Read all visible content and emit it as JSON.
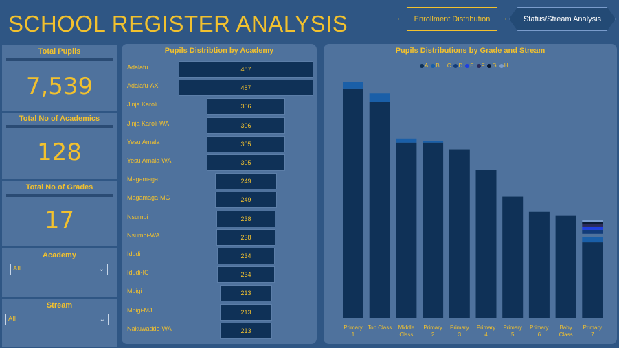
{
  "header": {
    "title": "SCHOOL REGISTER ANALYSIS",
    "nav": [
      {
        "label": "Enrollment Distribution"
      },
      {
        "label": "Status/Stream Analysis"
      }
    ]
  },
  "kpis": {
    "total_pupils": {
      "label": "Total Pupils",
      "value": "7,539"
    },
    "total_academics": {
      "label": "Total No of Academics",
      "value": "128"
    },
    "total_grades": {
      "label": "Total No of Grades",
      "value": "17"
    }
  },
  "slicers": {
    "academy": {
      "label": "Academy",
      "selected": "All"
    },
    "stream": {
      "label": "Stream",
      "selected": "All"
    }
  },
  "colors": {
    "accent": "#f2c12e",
    "background": "#2f5684",
    "panel": "#4f729d",
    "bar": "#0f3157"
  },
  "chart_data": [
    {
      "type": "bar",
      "orientation": "horizontal",
      "title": "Pupils Distribtion by  Academy",
      "categories": [
        "Adalafu",
        "Adalafu-AX",
        "Jinja Karoli",
        "Jinja Karoli-WA",
        "Yesu Amala",
        "Yesu Amala-WA",
        "Magamaga",
        "Magamaga-MG",
        "Nsumbi",
        "Nsumbi-WA",
        "Idudi",
        "Idudi-IC",
        "Mpigi",
        "Mpigi-MJ",
        "Nakuwadde-WA"
      ],
      "values": [
        487,
        487,
        306,
        306,
        305,
        305,
        249,
        249,
        238,
        238,
        234,
        234,
        213,
        213,
        213
      ]
    },
    {
      "type": "bar",
      "orientation": "vertical",
      "stacked": true,
      "title": "Pupils Distributions by Grade and Stream",
      "legend": [
        "A",
        "B",
        "C",
        "D",
        "E",
        "F",
        "G",
        "H"
      ],
      "legend_colors": [
        "#0f3157",
        "#1a5fa8",
        "#4f729d",
        "#123c7a",
        "#1f3fe0",
        "#2b2b5a",
        "#0a1a33",
        "#7a9ccc"
      ],
      "categories": [
        "Primary 1",
        "Top Class",
        "Middle Class",
        "Primary 2",
        "Primary 3",
        "Primary 4",
        "Primary 5",
        "Primary 6",
        "Baby Class",
        "Primary 7"
      ],
      "series": [
        {
          "name": "A",
          "values": [
            680,
            640,
            520,
            520,
            500,
            440,
            360,
            315,
            305,
            225
          ]
        },
        {
          "name": "B",
          "values": [
            18,
            25,
            12,
            5,
            0,
            0,
            0,
            0,
            0,
            15
          ]
        },
        {
          "name": "C",
          "values": [
            0,
            0,
            0,
            0,
            0,
            0,
            0,
            0,
            0,
            10
          ]
        },
        {
          "name": "D",
          "values": [
            0,
            0,
            0,
            0,
            0,
            0,
            0,
            0,
            0,
            12
          ]
        },
        {
          "name": "E",
          "values": [
            0,
            0,
            0,
            0,
            0,
            0,
            0,
            0,
            0,
            10
          ]
        },
        {
          "name": "F",
          "values": [
            0,
            0,
            0,
            0,
            0,
            0,
            0,
            0,
            0,
            8
          ]
        },
        {
          "name": "G",
          "values": [
            0,
            0,
            0,
            0,
            0,
            0,
            0,
            0,
            0,
            6
          ]
        },
        {
          "name": "H",
          "values": [
            0,
            0,
            0,
            0,
            0,
            0,
            0,
            0,
            0,
            6
          ]
        }
      ],
      "xlabel_lines": [
        [
          "Primary",
          "1"
        ],
        [
          "Top Class",
          ""
        ],
        [
          "Middle",
          "Class"
        ],
        [
          "Primary",
          "2"
        ],
        [
          "Primary",
          "3"
        ],
        [
          "Primary",
          "4"
        ],
        [
          "Primary",
          "5"
        ],
        [
          "Primary",
          "6"
        ],
        [
          "Baby",
          "Class"
        ],
        [
          "Primary",
          "7"
        ]
      ]
    }
  ]
}
